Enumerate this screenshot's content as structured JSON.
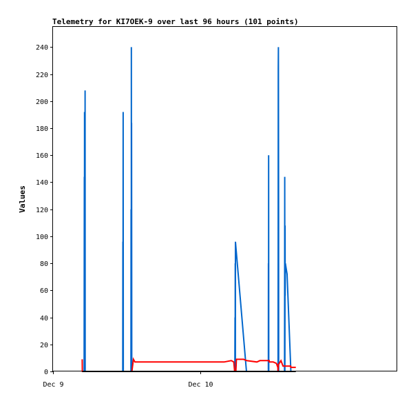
{
  "chart_data": {
    "type": "line",
    "title": "Telemetry for KI7OEK-9 over last 96 hours (101 points)",
    "ylabel": "Values",
    "xlabel": "",
    "ylim": [
      0,
      255
    ],
    "yticks": [
      0,
      20,
      40,
      60,
      80,
      100,
      120,
      140,
      160,
      180,
      200,
      220,
      240
    ],
    "xlim": [
      "2023-12-09 00:00",
      "2023-12-11 08:00"
    ],
    "xticks": [
      {
        "x": "2023-12-09 00:00",
        "label": "Dec 9"
      },
      {
        "x": "2023-12-10 00:00",
        "label": "Dec 10"
      }
    ],
    "grid": false,
    "series": [
      {
        "color": "#0066cc",
        "points": [
          [
            "2023-12-09 05:04",
            0
          ],
          [
            "2023-12-09 05:06",
            144
          ],
          [
            "2023-12-09 05:07",
            48
          ],
          [
            "2023-12-09 05:08",
            192
          ],
          [
            "2023-12-09 05:09",
            0
          ],
          [
            "2023-12-09 05:11",
            104
          ],
          [
            "2023-12-09 05:12",
            0
          ],
          [
            "2023-12-09 05:13",
            208
          ],
          [
            "2023-12-09 05:14",
            0
          ],
          [
            "2023-12-09 11:21",
            0
          ],
          [
            "2023-12-09 11:22",
            96
          ],
          [
            "2023-12-09 11:23",
            0
          ],
          [
            "2023-12-09 11:25",
            192
          ],
          [
            "2023-12-09 11:26",
            0
          ],
          [
            "2023-12-09 12:41",
            0
          ],
          [
            "2023-12-09 12:42",
            120
          ],
          [
            "2023-12-09 12:44",
            0
          ],
          [
            "2023-12-09 12:45",
            240
          ],
          [
            "2023-12-09 12:46",
            0
          ],
          [
            "2023-12-09 12:47",
            184
          ],
          [
            "2023-12-09 12:48",
            72
          ],
          [
            "2023-12-09 12:49",
            0
          ],
          [
            "2023-12-10 05:35",
            0
          ],
          [
            "2023-12-10 05:37",
            40
          ],
          [
            "2023-12-10 05:38",
            0
          ],
          [
            "2023-12-10 05:39",
            80
          ],
          [
            "2023-12-10 05:40",
            0
          ],
          [
            "2023-12-10 05:41",
            96
          ],
          [
            "2023-12-10 07:28",
            0
          ],
          [
            "2023-12-10 11:02",
            0
          ],
          [
            "2023-12-10 11:03",
            80
          ],
          [
            "2023-12-10 11:04",
            0
          ],
          [
            "2023-12-10 11:05",
            160
          ],
          [
            "2023-12-10 11:06",
            0
          ],
          [
            "2023-12-10 12:37",
            0
          ],
          [
            "2023-12-10 12:38",
            104
          ],
          [
            "2023-12-10 12:39",
            224
          ],
          [
            "2023-12-10 12:40",
            240
          ],
          [
            "2023-12-10 12:42",
            120
          ],
          [
            "2023-12-10 12:43",
            0
          ],
          [
            "2023-12-10 13:40",
            0
          ],
          [
            "2023-12-10 13:41",
            72
          ],
          [
            "2023-12-10 13:42",
            144
          ],
          [
            "2023-12-10 13:43",
            0
          ],
          [
            "2023-12-10 13:45",
            108
          ],
          [
            "2023-12-10 13:46",
            56
          ],
          [
            "2023-12-10 13:48",
            80
          ],
          [
            "2023-12-10 14:05",
            72
          ],
          [
            "2023-12-10 14:42",
            0
          ]
        ]
      },
      {
        "color": "#ff0000",
        "points": [
          [
            "2023-12-09 04:45",
            9
          ],
          [
            "2023-12-09 04:46",
            0
          ],
          [
            "2023-12-09 05:20",
            0
          ],
          [
            "2023-12-09 12:50",
            0
          ],
          [
            "2023-12-09 13:05",
            9
          ],
          [
            "2023-12-09 13:20",
            7
          ],
          [
            "2023-12-10 02:50",
            7
          ],
          [
            "2023-12-10 03:50",
            7
          ],
          [
            "2023-12-10 05:00",
            8
          ],
          [
            "2023-12-10 05:25",
            7
          ],
          [
            "2023-12-10 05:33",
            0
          ],
          [
            "2023-12-10 05:45",
            0
          ],
          [
            "2023-12-10 05:50",
            9
          ],
          [
            "2023-12-10 07:00",
            9
          ],
          [
            "2023-12-10 07:30",
            8
          ],
          [
            "2023-12-10 09:10",
            7
          ],
          [
            "2023-12-10 09:40",
            8
          ],
          [
            "2023-12-10 11:10",
            8
          ],
          [
            "2023-12-10 11:11",
            7
          ],
          [
            "2023-12-10 11:50",
            7
          ],
          [
            "2023-12-10 12:20",
            6
          ],
          [
            "2023-12-10 12:35",
            3
          ],
          [
            "2023-12-10 12:36",
            0
          ],
          [
            "2023-12-10 12:40",
            5
          ],
          [
            "2023-12-10 13:05",
            8
          ],
          [
            "2023-12-10 13:25",
            4
          ],
          [
            "2023-12-10 14:40",
            4
          ],
          [
            "2023-12-10 14:42",
            3
          ],
          [
            "2023-12-10 15:30",
            3
          ]
        ]
      },
      {
        "color": "#000000",
        "points": [
          [
            "2023-12-09 04:45",
            0
          ],
          [
            "2023-12-10 15:30",
            0
          ]
        ]
      }
    ]
  }
}
